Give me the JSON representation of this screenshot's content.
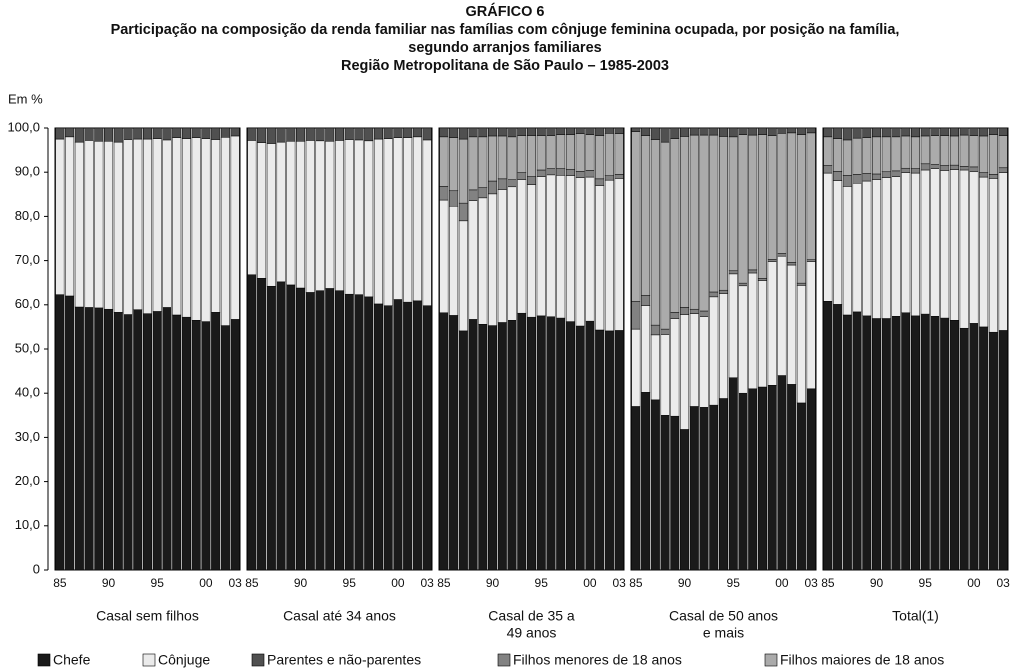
{
  "chart_data": {
    "type": "bar",
    "stacked": true,
    "title": [
      "GRÁFICO 6",
      "Participação na composição da renda familiar nas famílias com cônjuge feminina ocupada, por posição na família,",
      "segundo arranjos familiares",
      "Região Metropolitana de São Paulo – 1985-2003"
    ],
    "ylabel": "Em %",
    "ylim": [
      0,
      100
    ],
    "yticks": [
      0,
      {
        "value": 10,
        "label": "10,0"
      },
      {
        "value": 20,
        "label": "20,0"
      },
      {
        "value": 30,
        "label": "30,0"
      },
      {
        "value": 40,
        "label": "40,0"
      },
      {
        "value": 50,
        "label": "50,0"
      },
      {
        "value": 60,
        "label": "60,0"
      },
      {
        "value": 70,
        "label": "70,0"
      },
      {
        "value": 80,
        "label": "80,0"
      },
      {
        "value": 90,
        "label": "90,0"
      },
      {
        "value": 100,
        "label": "100,0"
      }
    ],
    "categories": [
      "85",
      null,
      null,
      null,
      null,
      "90",
      null,
      null,
      null,
      null,
      "95",
      null,
      null,
      null,
      null,
      "00",
      null,
      null,
      "03"
    ],
    "groups": [
      [
        "Casal sem filhos"
      ],
      [
        "Casal até 34 anos"
      ],
      [
        "Casal de 35 a",
        "49 anos"
      ],
      [
        "Casal de 50 anos",
        "e mais"
      ],
      [
        "Total(1)"
      ]
    ],
    "stack_order": [
      0,
      1,
      3,
      4,
      2
    ],
    "series": [
      {
        "name": "Chefe",
        "color": "#1a1a1a",
        "values": [
          [
            62.3,
            62.0,
            59.5,
            59.4,
            59.3,
            59.0,
            58.3,
            57.8,
            58.9,
            58.0,
            58.5,
            59.4,
            57.7,
            57.2,
            56.5,
            56.2,
            58.3,
            55.3,
            56.7
          ],
          [
            66.8,
            66.0,
            64.2,
            65.2,
            64.5,
            63.8,
            62.8,
            63.2,
            63.7,
            63.2,
            62.4,
            62.3,
            61.8,
            60.2,
            59.8,
            61.2,
            60.6,
            60.9,
            59.8
          ],
          [
            58.2,
            57.6,
            54.1,
            56.7,
            55.6,
            55.3,
            56.0,
            56.5,
            58.1,
            57.2,
            57.5,
            57.3,
            57.0,
            56.2,
            55.2,
            56.3,
            54.3,
            54.1,
            54.2
          ],
          [
            37.0,
            40.2,
            38.5,
            35.0,
            34.8,
            31.8,
            37.0,
            36.8,
            37.3,
            38.8,
            43.5,
            40.0,
            41.0,
            41.4,
            41.8,
            44.0,
            42.0,
            37.8,
            41.0
          ],
          [
            60.8,
            60.1,
            57.7,
            58.4,
            57.5,
            56.9,
            56.9,
            57.4,
            58.2,
            57.5,
            57.9,
            57.4,
            57.0,
            56.5,
            54.7,
            55.8,
            55.0,
            53.8,
            54.2
          ]
        ]
      },
      {
        "name": "Cônjuge",
        "color": "#ebebeb",
        "values": [
          [
            35.2,
            36.0,
            37.3,
            37.8,
            37.7,
            38.0,
            38.5,
            39.6,
            38.6,
            39.5,
            39.1,
            37.9,
            40.1,
            40.4,
            41.3,
            41.4,
            39.1,
            42.6,
            41.5
          ],
          [
            30.4,
            30.7,
            32.3,
            31.6,
            32.5,
            33.2,
            34.4,
            33.9,
            33.3,
            34.0,
            35.0,
            35.0,
            35.3,
            37.3,
            37.8,
            36.6,
            37.2,
            37.1,
            37.5
          ],
          [
            25.5,
            24.7,
            24.9,
            26.9,
            28.6,
            29.8,
            30.1,
            30.2,
            30.2,
            30.0,
            31.5,
            32.1,
            32.3,
            33.0,
            33.6,
            32.6,
            32.7,
            34.1,
            34.4
          ],
          [
            17.5,
            19.6,
            14.7,
            18.3,
            22.1,
            26.0,
            21.0,
            20.5,
            24.5,
            23.7,
            23.5,
            24.3,
            26.2,
            24.1,
            28.0,
            27.0,
            27.0,
            26.6,
            28.8
          ],
          [
            29.0,
            28.0,
            29.1,
            29.1,
            30.5,
            31.4,
            31.9,
            31.6,
            31.7,
            32.3,
            32.6,
            33.4,
            33.4,
            34.1,
            35.8,
            34.3,
            33.9,
            34.8,
            35.7
          ]
        ]
      },
      {
        "name": "Parentes e não-parentes",
        "color": "#505050",
        "values": [
          [
            2.5,
            2.0,
            3.2,
            2.8,
            3.0,
            3.0,
            3.2,
            2.6,
            2.5,
            2.5,
            2.4,
            2.7,
            2.2,
            2.4,
            2.2,
            2.4,
            2.6,
            2.1,
            1.8
          ],
          [
            2.8,
            3.3,
            3.5,
            3.2,
            3.0,
            3.0,
            2.8,
            2.9,
            3.0,
            2.8,
            2.6,
            2.7,
            2.9,
            2.5,
            2.4,
            2.2,
            2.2,
            2.0,
            2.7
          ],
          [
            2.0,
            2.2,
            2.5,
            2.0,
            2.0,
            1.8,
            1.8,
            2.0,
            1.7,
            1.7,
            1.7,
            1.7,
            1.5,
            1.5,
            1.3,
            1.5,
            1.7,
            1.2,
            1.3
          ],
          [
            0.8,
            1.7,
            2.6,
            3.2,
            2.4,
            1.9,
            1.6,
            1.6,
            1.6,
            1.9,
            2.0,
            1.5,
            1.6,
            1.5,
            1.7,
            1.2,
            1.1,
            1.5,
            1.1
          ],
          [
            2.0,
            2.4,
            2.7,
            2.3,
            2.2,
            2.0,
            2.0,
            2.0,
            1.8,
            2.0,
            1.8,
            1.7,
            1.7,
            1.8,
            1.6,
            1.7,
            1.8,
            1.5,
            1.7
          ]
        ]
      },
      {
        "name": "Filhos menores de 18 anos",
        "color": "#828282",
        "values": [
          [
            0,
            0,
            0,
            0,
            0,
            0,
            0,
            0,
            0,
            0,
            0,
            0,
            0,
            0,
            0,
            0,
            0,
            0,
            0
          ],
          [
            0,
            0,
            0,
            0,
            0,
            0,
            0,
            0,
            0,
            0,
            0,
            0,
            0,
            0,
            0,
            0,
            0,
            0,
            0
          ],
          [
            3.1,
            3.5,
            4.0,
            2.4,
            2.3,
            2.9,
            2.4,
            1.6,
            1.6,
            1.8,
            1.5,
            1.4,
            1.5,
            1.4,
            1.4,
            1.5,
            1.5,
            1.0,
            0.9
          ],
          [
            6.3,
            2.3,
            2.2,
            1.2,
            1.4,
            1.6,
            1.0,
            1.3,
            1.1,
            0.8,
            0.7,
            0.6,
            0.7,
            0.5,
            0.5,
            0.6,
            0.6,
            0.5,
            0.4
          ],
          [
            1.7,
            2.1,
            2.5,
            2.0,
            1.7,
            1.3,
            1.3,
            1.3,
            1.0,
            1.0,
            1.4,
            1.0,
            1.1,
            1.0,
            0.8,
            1.1,
            1.0,
            0.9,
            1.1
          ]
        ]
      },
      {
        "name": "Filhos maiores de 18 anos",
        "color": "#ababab",
        "values": [
          [
            0,
            0,
            0,
            0,
            0,
            0,
            0,
            0,
            0,
            0,
            0,
            0,
            0,
            0,
            0,
            0,
            0,
            0,
            0
          ],
          [
            0,
            0,
            0,
            0,
            0,
            0,
            0,
            0,
            0,
            0,
            0,
            0,
            0,
            0,
            0,
            0,
            0,
            0,
            0
          ],
          [
            11.2,
            12.0,
            14.5,
            12.0,
            11.5,
            10.2,
            9.7,
            9.7,
            8.4,
            9.3,
            7.8,
            7.5,
            7.7,
            7.9,
            8.5,
            8.1,
            9.8,
            9.6,
            9.2
          ],
          [
            38.4,
            36.2,
            42.0,
            42.3,
            39.3,
            38.7,
            39.4,
            39.8,
            35.5,
            34.8,
            30.3,
            33.6,
            30.5,
            32.5,
            28.0,
            27.2,
            29.3,
            33.6,
            28.7
          ],
          [
            6.5,
            7.4,
            8.0,
            8.2,
            8.1,
            8.4,
            7.9,
            7.7,
            7.3,
            7.2,
            6.3,
            6.5,
            6.8,
            6.6,
            7.1,
            7.1,
            8.3,
            9.0,
            7.3
          ]
        ]
      }
    ]
  }
}
